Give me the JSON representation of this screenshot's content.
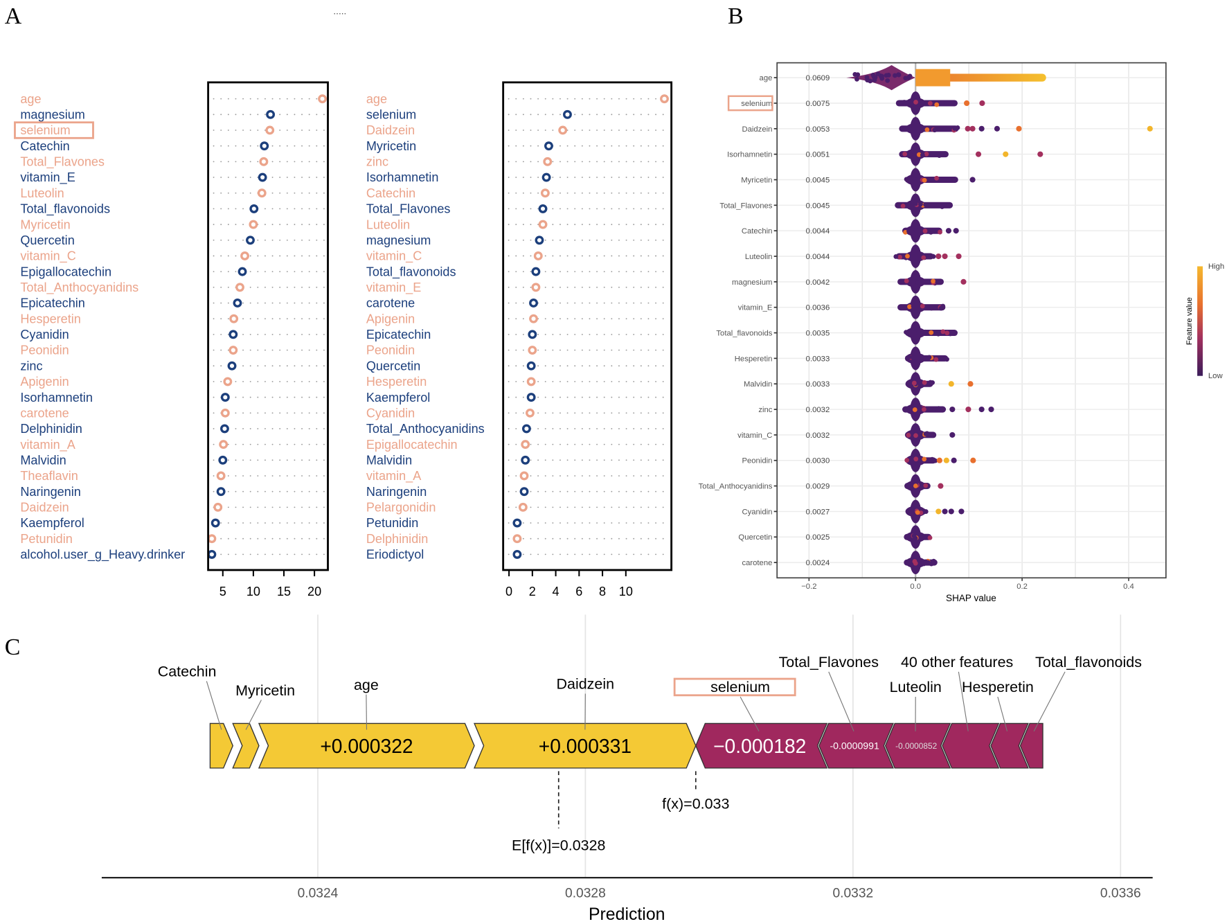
{
  "panel_labels": {
    "a": "A",
    "b": "B",
    "c": "C",
    "dots": "....."
  },
  "colors": {
    "salmon": "#EBA48B",
    "navy": "#1C3F7C",
    "purple": "#4B1E6C",
    "crimson": "#A3305E",
    "orange": "#E8702E",
    "yellow": "#F2B52B",
    "force_pos": "#F4C935",
    "force_neg": "#A0285E"
  },
  "chart_data": [
    {
      "type": "scatter",
      "panel": "A-left",
      "xlim": [
        2.6,
        22.2
      ],
      "x_ticks": [
        5,
        10,
        15,
        20
      ],
      "x_tick_labels": [
        "5",
        "10",
        "15",
        "20"
      ],
      "highlight": "selenium",
      "features": [
        {
          "name": "age",
          "value": 21.3
        },
        {
          "name": "magnesium",
          "value": 12.8
        },
        {
          "name": "selenium",
          "value": 12.7
        },
        {
          "name": "Catechin",
          "value": 11.8
        },
        {
          "name": "Total_Flavones",
          "value": 11.7
        },
        {
          "name": "vitamin_E",
          "value": 11.5
        },
        {
          "name": "Luteolin",
          "value": 11.4
        },
        {
          "name": "Total_flavonoids",
          "value": 10.1
        },
        {
          "name": "Myricetin",
          "value": 10.0
        },
        {
          "name": "Quercetin",
          "value": 9.5
        },
        {
          "name": "vitamin_C",
          "value": 8.6
        },
        {
          "name": "Epigallocatechin",
          "value": 8.2
        },
        {
          "name": "Total_Anthocyanidins",
          "value": 7.8
        },
        {
          "name": "Epicatechin",
          "value": 7.4
        },
        {
          "name": "Hesperetin",
          "value": 6.8
        },
        {
          "name": "Cyanidin",
          "value": 6.7
        },
        {
          "name": "Peonidin",
          "value": 6.7
        },
        {
          "name": "zinc",
          "value": 6.5
        },
        {
          "name": "Apigenin",
          "value": 5.8
        },
        {
          "name": "Isorhamnetin",
          "value": 5.4
        },
        {
          "name": "carotene",
          "value": 5.4
        },
        {
          "name": "Delphinidin",
          "value": 5.3
        },
        {
          "name": "vitamin_A",
          "value": 5.1
        },
        {
          "name": "Malvidin",
          "value": 5.0
        },
        {
          "name": "Theaflavin",
          "value": 4.7
        },
        {
          "name": "Naringenin",
          "value": 4.7
        },
        {
          "name": "Daidzein",
          "value": 4.2
        },
        {
          "name": "Kaempferol",
          "value": 3.8
        },
        {
          "name": "Petunidin",
          "value": 3.2
        },
        {
          "name": "alcohol.user_g_Heavy.drinker",
          "value": 3.2
        }
      ]
    },
    {
      "type": "scatter",
      "panel": "A-right",
      "xlim": [
        -0.5,
        13.9
      ],
      "x_ticks": [
        0,
        2,
        4,
        6,
        8,
        10
      ],
      "x_tick_labels": [
        "0",
        "2",
        "4",
        "6",
        "8",
        "10"
      ],
      "features": [
        {
          "name": "age",
          "value": 13.3
        },
        {
          "name": "selenium",
          "value": 5.0
        },
        {
          "name": "Daidzein",
          "value": 4.6
        },
        {
          "name": "Myricetin",
          "value": 3.4
        },
        {
          "name": "zinc",
          "value": 3.3
        },
        {
          "name": "Isorhamnetin",
          "value": 3.2
        },
        {
          "name": "Catechin",
          "value": 3.1
        },
        {
          "name": "Total_Flavones",
          "value": 2.9
        },
        {
          "name": "Luteolin",
          "value": 2.9
        },
        {
          "name": "magnesium",
          "value": 2.6
        },
        {
          "name": "vitamin_C",
          "value": 2.5
        },
        {
          "name": "Total_flavonoids",
          "value": 2.3
        },
        {
          "name": "vitamin_E",
          "value": 2.3
        },
        {
          "name": "carotene",
          "value": 2.1
        },
        {
          "name": "Apigenin",
          "value": 2.1
        },
        {
          "name": "Epicatechin",
          "value": 2.0
        },
        {
          "name": "Peonidin",
          "value": 2.0
        },
        {
          "name": "Quercetin",
          "value": 1.9
        },
        {
          "name": "Hesperetin",
          "value": 1.9
        },
        {
          "name": "Kaempferol",
          "value": 1.9
        },
        {
          "name": "Cyanidin",
          "value": 1.8
        },
        {
          "name": "Total_Anthocyanidins",
          "value": 1.5
        },
        {
          "name": "Epigallocatechin",
          "value": 1.4
        },
        {
          "name": "Malvidin",
          "value": 1.4
        },
        {
          "name": "vitamin_A",
          "value": 1.3
        },
        {
          "name": "Naringenin",
          "value": 1.3
        },
        {
          "name": "Pelargonidin",
          "value": 1.2
        },
        {
          "name": "Petunidin",
          "value": 0.7
        },
        {
          "name": "Delphinidin",
          "value": 0.7
        },
        {
          "name": "Eriodictyol",
          "value": 0.7
        }
      ]
    },
    {
      "type": "scatter",
      "panel": "B",
      "title": "",
      "xlabel": "SHAP value",
      "xlim": [
        -0.26,
        0.47
      ],
      "x_ticks": [
        -0.2,
        0.0,
        0.2,
        0.4
      ],
      "x_tick_labels": [
        "−0.2",
        "0.0",
        "0.2",
        "0.4"
      ],
      "gridlines": [
        -0.2,
        -0.1,
        0.0,
        0.1,
        0.2,
        0.3,
        0.4
      ],
      "highlight": "selenium",
      "legend": {
        "title": "Feature value",
        "high": "High",
        "low": "Low",
        "position": "right"
      },
      "features": [
        {
          "name": "age",
          "importance": "0.0609",
          "range": [
            -0.13,
            0.245
          ],
          "outliers": []
        },
        {
          "name": "selenium",
          "importance": "0.0075",
          "range": [
            -0.037,
            0.079
          ],
          "outliers": [
            [
              0.096,
              "orange"
            ],
            [
              0.125,
              "crimson"
            ]
          ]
        },
        {
          "name": "Daidzein",
          "importance": "0.0053",
          "range": [
            -0.031,
            0.081
          ],
          "outliers": [
            [
              0.098,
              "crimson"
            ],
            [
              0.107,
              "crimson"
            ],
            [
              0.124,
              "purple"
            ],
            [
              0.153,
              "purple"
            ],
            [
              0.194,
              "orange"
            ],
            [
              0.44,
              "yellow"
            ]
          ]
        },
        {
          "name": "Isorhamnetin",
          "importance": "0.0051",
          "range": [
            -0.031,
            0.062
          ],
          "outliers": [
            [
              0.118,
              "crimson"
            ],
            [
              0.169,
              "yellow"
            ],
            [
              0.234,
              "crimson"
            ]
          ]
        },
        {
          "name": "Myricetin",
          "importance": "0.0045",
          "range": [
            -0.02,
            0.08
          ],
          "outliers": [
            [
              0.107,
              "purple"
            ]
          ]
        },
        {
          "name": "Total_Flavones",
          "importance": "0.0045",
          "range": [
            -0.039,
            0.07
          ],
          "outliers": []
        },
        {
          "name": "Catechin",
          "importance": "0.0044",
          "range": [
            -0.025,
            0.05
          ],
          "outliers": [
            [
              0.062,
              "purple"
            ],
            [
              0.076,
              "purple"
            ]
          ]
        },
        {
          "name": "Luteolin",
          "importance": "0.0044",
          "range": [
            -0.037,
            0.034
          ],
          "outliers": [
            [
              0.043,
              "crimson"
            ],
            [
              0.055,
              "crimson"
            ],
            [
              0.081,
              "crimson"
            ]
          ]
        },
        {
          "name": "magnesium",
          "importance": "0.0042",
          "range": [
            -0.034,
            0.053
          ],
          "outliers": [
            [
              0.09,
              "crimson"
            ]
          ]
        },
        {
          "name": "vitamin_E",
          "importance": "0.0036",
          "range": [
            -0.034,
            0.056
          ],
          "outliers": []
        },
        {
          "name": "Total_flavonoids",
          "importance": "0.0035",
          "range": [
            -0.02,
            0.079
          ],
          "outliers": []
        },
        {
          "name": "Hesperetin",
          "importance": "0.0033",
          "range": [
            -0.02,
            0.061
          ],
          "outliers": []
        },
        {
          "name": "Malvidin",
          "importance": "0.0033",
          "range": [
            -0.012,
            0.033
          ],
          "outliers": [
            [
              0.067,
              "yellow"
            ],
            [
              0.103,
              "orange"
            ]
          ]
        },
        {
          "name": "zinc",
          "importance": "0.0032",
          "range": [
            -0.025,
            0.057
          ],
          "outliers": [
            [
              0.069,
              "purple"
            ],
            [
              0.099,
              "crimson"
            ],
            [
              0.124,
              "purple"
            ],
            [
              0.142,
              "purple"
            ]
          ]
        },
        {
          "name": "vitamin_C",
          "importance": "0.0032",
          "range": [
            -0.02,
            0.039
          ],
          "outliers": [
            [
              0.069,
              "purple"
            ]
          ]
        },
        {
          "name": "Peonidin",
          "importance": "0.0030",
          "range": [
            -0.018,
            0.039
          ],
          "outliers": [
            [
              0.045,
              "orange"
            ],
            [
              0.058,
              "yellow"
            ],
            [
              0.072,
              "purple"
            ],
            [
              0.108,
              "orange"
            ]
          ]
        },
        {
          "name": "Total_Anthocyanidins",
          "importance": "0.0029",
          "range": [
            -0.021,
            0.028
          ],
          "outliers": [
            [
              0.047,
              "crimson"
            ]
          ]
        },
        {
          "name": "Cyanidin",
          "importance": "0.0027",
          "range": [
            -0.017,
            0.02
          ],
          "outliers": [
            [
              0.043,
              "yellow"
            ],
            [
              0.055,
              "purple"
            ],
            [
              0.067,
              "purple"
            ],
            [
              0.086,
              "purple"
            ]
          ]
        },
        {
          "name": "Quercetin",
          "importance": "0.0025",
          "range": [
            -0.022,
            0.03
          ],
          "outliers": []
        },
        {
          "name": "carotene",
          "importance": "0.0024",
          "range": [
            -0.022,
            0.041
          ],
          "outliers": []
        }
      ]
    },
    {
      "type": "bar",
      "panel": "C",
      "subtype": "force",
      "xlabel": "Prediction",
      "xlim": [
        0.032077,
        0.033648
      ],
      "x_ticks": [
        0.0324,
        0.0328,
        0.0332,
        0.0336
      ],
      "x_tick_labels": [
        "0.0324",
        "0.0328",
        "0.0332",
        "0.0336"
      ],
      "base_value": 0.03276,
      "base_label": "E[f(x)]=0.0328",
      "fx": 0.032965,
      "fx_label": "f(x)=0.033",
      "highlight": "selenium",
      "positive": [
        {
          "name": "Catechin",
          "effect": 3.4e-05,
          "label": ""
        },
        {
          "name": "Myricetin",
          "effect": 3.9e-05,
          "label": ""
        },
        {
          "name": "age",
          "effect": 0.000322,
          "label": "+0.000322"
        },
        {
          "name": "Daidzein",
          "effect": 0.000331,
          "label": "+0.000331"
        }
      ],
      "negative": [
        {
          "name": "selenium",
          "effect": -0.000182,
          "label": "−0.000182"
        },
        {
          "name": "Total_Flavones",
          "effect": -9.91e-05,
          "label": "-0.0000991"
        },
        {
          "name": "Luteolin",
          "effect": -8.52e-05,
          "label": "-0.0000852"
        },
        {
          "name": "40 other features",
          "effect": -7.25e-05,
          "label": ""
        },
        {
          "name": "Hesperetin",
          "effect": -4.4e-05,
          "label": ""
        },
        {
          "name": "Total_flavonoids",
          "effect": -3.6e-05,
          "label": ""
        }
      ]
    }
  ]
}
